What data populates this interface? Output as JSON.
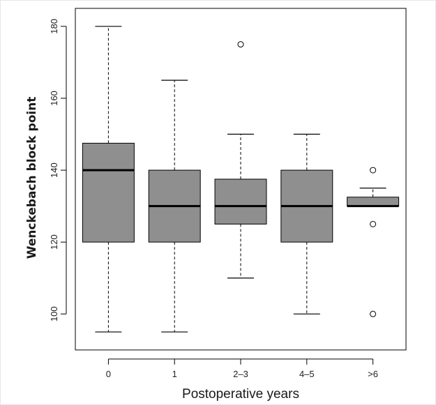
{
  "chart_data": {
    "type": "boxplot",
    "title": "",
    "xlabel": "Postoperative years",
    "ylabel": "Wenckebach block point",
    "ylim": [
      90,
      185
    ],
    "yticks": [
      "100",
      "120",
      "140",
      "160",
      "180"
    ],
    "categories": [
      "0",
      "1",
      "2–3",
      "4–5",
      ">6"
    ],
    "boxes": [
      {
        "category": "0",
        "whisker_low": 95,
        "q1": 120,
        "median": 140,
        "q3": 147.5,
        "whisker_high": 180,
        "outliers": []
      },
      {
        "category": "1",
        "whisker_low": 95,
        "q1": 120,
        "median": 130,
        "q3": 140,
        "whisker_high": 165,
        "outliers": []
      },
      {
        "category": "2–3",
        "whisker_low": 110,
        "q1": 125,
        "median": 130,
        "q3": 137.5,
        "whisker_high": 150,
        "outliers": [
          175
        ]
      },
      {
        "category": "4–5",
        "whisker_low": 100,
        "q1": 120,
        "median": 130,
        "q3": 140,
        "whisker_high": 150,
        "outliers": []
      },
      {
        "category": ">6",
        "whisker_low": 130,
        "q1": 130,
        "median": 130,
        "q3": 132.5,
        "whisker_high": 135,
        "outliers": [
          140,
          125,
          100
        ]
      }
    ],
    "colors": {
      "box_fill": "#8f8f8f",
      "stroke": "#000000",
      "outlier_fill": "#ffffff"
    },
    "grid": false,
    "legend": "none"
  }
}
